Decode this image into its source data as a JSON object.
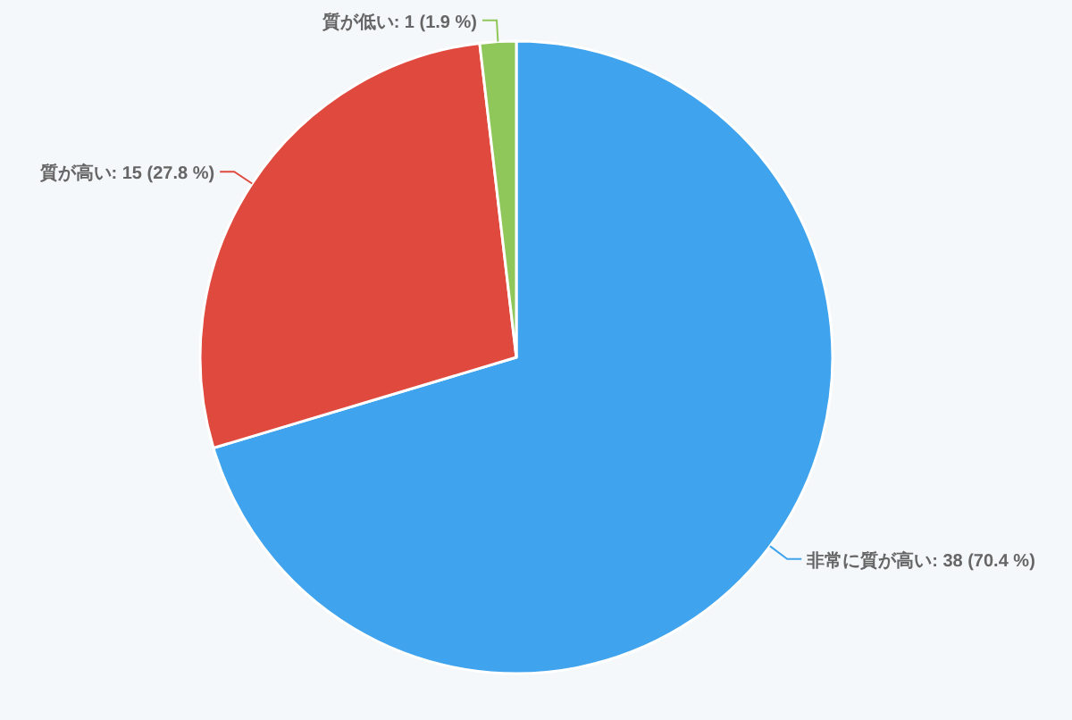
{
  "chart_data": {
    "type": "pie",
    "categories": [
      "非常に質が高い",
      "質が高い",
      "質が低い"
    ],
    "values": [
      38,
      15,
      1
    ],
    "value_labels": [
      ": 38 (70.4 %)",
      ": 15 (27.8 %)",
      ": 1 (1.9 %)"
    ],
    "colors": [
      "#3fa3ed",
      "#e0493e",
      "#8fc75a"
    ]
  }
}
